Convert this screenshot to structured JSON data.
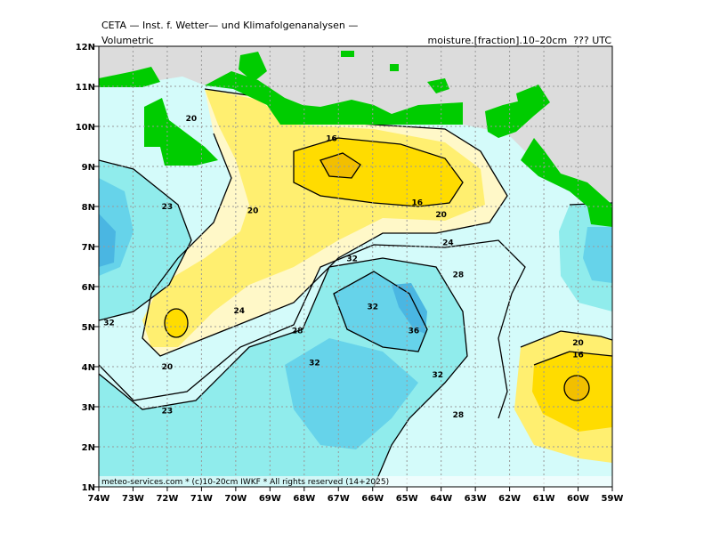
{
  "header": {
    "title": "CETA — Inst. f. Wetter— und Klimafolgenanalysen —",
    "left_label": "Volumetric",
    "right_label": "moisture.[fraction].10–20cm  ??? UTC"
  },
  "footer": "meteo-services.com * (c)10-20cm IWKF * All rights reserved (14+2025)",
  "map": {
    "lon_labels": [
      "74W",
      "73W",
      "72W",
      "71W",
      "70W",
      "69W",
      "68W",
      "67W",
      "66W",
      "65W",
      "64W",
      "63W",
      "62W",
      "61W",
      "60W",
      "59W"
    ],
    "lat_labels": [
      "12N",
      "11N",
      "10N",
      "9N",
      "8N",
      "7N",
      "6N",
      "5N",
      "4N",
      "3N",
      "2N",
      "1N"
    ],
    "contour_labels": [
      {
        "text": "20",
        "lon": -71.3,
        "lat": 10.2
      },
      {
        "text": "16",
        "lon": -67.2,
        "lat": 9.7
      },
      {
        "text": "16",
        "lon": -64.7,
        "lat": 8.1
      },
      {
        "text": "20",
        "lon": -64.0,
        "lat": 7.8
      },
      {
        "text": "20",
        "lon": -69.5,
        "lat": 7.9
      },
      {
        "text": "24",
        "lon": -63.8,
        "lat": 7.1
      },
      {
        "text": "23",
        "lon": -72.0,
        "lat": 8.0
      },
      {
        "text": "32",
        "lon": -66.6,
        "lat": 6.7
      },
      {
        "text": "28",
        "lon": -63.5,
        "lat": 6.3
      },
      {
        "text": "32",
        "lon": -66.0,
        "lat": 5.5
      },
      {
        "text": "24",
        "lon": -69.9,
        "lat": 5.4
      },
      {
        "text": "28",
        "lon": -68.2,
        "lat": 4.9
      },
      {
        "text": "36",
        "lon": -64.8,
        "lat": 4.9
      },
      {
        "text": "32",
        "lon": -73.7,
        "lat": 5.1
      },
      {
        "text": "20",
        "lon": -72.0,
        "lat": 4.0
      },
      {
        "text": "32",
        "lon": -67.7,
        "lat": 4.1
      },
      {
        "text": "32",
        "lon": -64.1,
        "lat": 3.8
      },
      {
        "text": "23",
        "lon": -72.0,
        "lat": 2.9
      },
      {
        "text": "28",
        "lon": -63.5,
        "lat": 2.8
      },
      {
        "text": "20",
        "lon": -60.0,
        "lat": 4.6
      },
      {
        "text": "16",
        "lon": -60.0,
        "lat": 4.3
      }
    ]
  },
  "colors": {
    "sea": "#dcdcdc",
    "land": "#00cc00",
    "c_12": "#f2bf00",
    "c_16": "#ffdc00",
    "c_20": "#ffef70",
    "c_24": "#fff8c8",
    "c_28": "#d4fbfa",
    "c_32": "#90ecec",
    "c_36": "#66d3ea",
    "c_40": "#4ab6e2"
  }
}
